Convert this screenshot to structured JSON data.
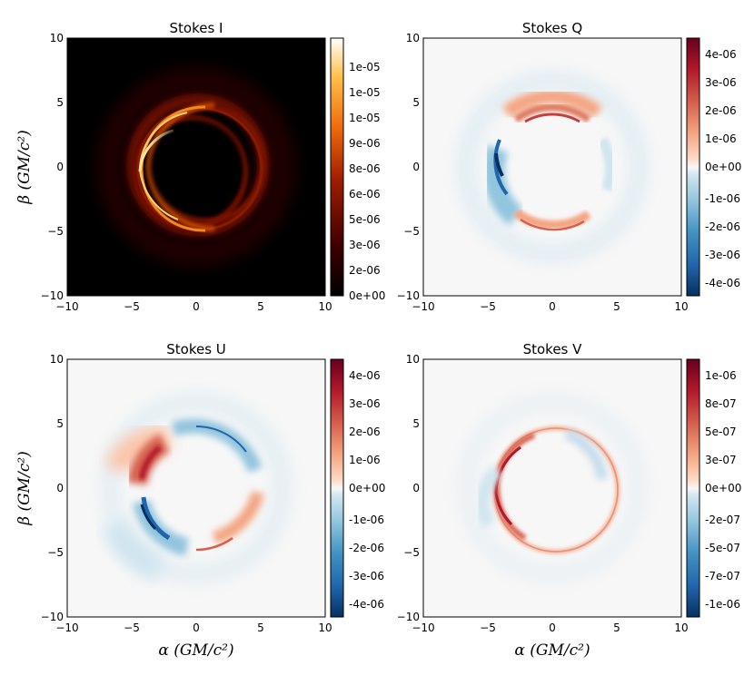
{
  "chart_data": [
    {
      "type": "heatmap",
      "title": "Stokes I",
      "xlabel": "",
      "ylabel": "β (GM/c²)",
      "xlim": [
        -10,
        10
      ],
      "ylim": [
        -10,
        10
      ],
      "x_ticks": [
        "−10",
        "−5",
        "0",
        "5",
        "10"
      ],
      "y_ticks": [
        "−10",
        "−5",
        "0",
        "5",
        "10"
      ],
      "x_tick_values": [
        -10,
        -5,
        0,
        5,
        10
      ],
      "y_tick_values": [
        -10,
        -5,
        0,
        5,
        10
      ],
      "colormap": "afmhot",
      "colorbar": {
        "tick_labels": [
          "0e+00",
          "2e-06",
          "3e-06",
          "5e-06",
          "6e-06",
          "8e-06",
          "9e-06",
          "1e-05",
          "1e-05",
          "1e-05"
        ],
        "vmin": 0,
        "vmax": 1.1e-05
      },
      "feature": {
        "shape": "photon ring",
        "ring_center": [
          0,
          0
        ],
        "inner_shadow_radius": 4,
        "ring_radius": 5,
        "brightest_side": "left",
        "peak_intensity": 1.1e-05
      }
    },
    {
      "type": "heatmap",
      "title": "Stokes Q",
      "xlabel": "",
      "ylabel": "",
      "xlim": [
        -10,
        10
      ],
      "ylim": [
        -10,
        10
      ],
      "x_ticks": [
        "−10",
        "−5",
        "0",
        "5",
        "10"
      ],
      "y_ticks": [
        "−10",
        "−5",
        "0",
        "5",
        "10"
      ],
      "x_tick_values": [
        -10,
        -5,
        0,
        5,
        10
      ],
      "y_tick_values": [
        -10,
        -5,
        0,
        5,
        10
      ],
      "colormap": "RdBu_r",
      "colorbar": {
        "tick_labels": [
          "-4e-06",
          "-3e-06",
          "-2e-06",
          "-1e-06",
          "0e+00",
          "1e-06",
          "2e-06",
          "3e-06",
          "4e-06"
        ],
        "vmin": -4.4e-06,
        "vmax": 4.4e-06
      },
      "feature": {
        "shape": "photon ring",
        "ring_radius": 5,
        "positive_regions": [
          "top",
          "bottom"
        ],
        "negative_regions": [
          "left"
        ]
      }
    },
    {
      "type": "heatmap",
      "title": "Stokes U",
      "xlabel": "α (GM/c²)",
      "ylabel": "β (GM/c²)",
      "xlim": [
        -10,
        10
      ],
      "ylim": [
        -10,
        10
      ],
      "x_ticks": [
        "−10",
        "−5",
        "0",
        "5",
        "10"
      ],
      "y_ticks": [
        "−10",
        "−5",
        "0",
        "5",
        "10"
      ],
      "x_tick_values": [
        -10,
        -5,
        0,
        5,
        10
      ],
      "y_tick_values": [
        -10,
        -5,
        0,
        5,
        10
      ],
      "colormap": "RdBu_r",
      "colorbar": {
        "tick_labels": [
          "-4e-06",
          "-3e-06",
          "-2e-06",
          "-1e-06",
          "0e+00",
          "1e-06",
          "2e-06",
          "3e-06",
          "4e-06"
        ],
        "vmin": -4.4e-06,
        "vmax": 4.4e-06
      },
      "feature": {
        "shape": "photon ring",
        "ring_radius": 5,
        "positive_regions": [
          "upper-left",
          "lower-right"
        ],
        "negative_regions": [
          "lower-left",
          "upper-right"
        ]
      }
    },
    {
      "type": "heatmap",
      "title": "Stokes V",
      "xlabel": "α (GM/c²)",
      "ylabel": "",
      "xlim": [
        -10,
        10
      ],
      "ylim": [
        -10,
        10
      ],
      "x_ticks": [
        "−10",
        "−5",
        "0",
        "5",
        "10"
      ],
      "y_ticks": [
        "−10",
        "−5",
        "0",
        "5",
        "10"
      ],
      "x_tick_values": [
        -10,
        -5,
        0,
        5,
        10
      ],
      "y_tick_values": [
        -10,
        -5,
        0,
        5,
        10
      ],
      "colormap": "RdBu_r",
      "colorbar": {
        "tick_labels": [
          "-1e-06",
          "-7e-07",
          "-5e-07",
          "-2e-07",
          "0e+00",
          "3e-07",
          "5e-07",
          "8e-07",
          "1e-06"
        ],
        "vmin": -1.1e-06,
        "vmax": 1.1e-06
      },
      "feature": {
        "shape": "photon ring",
        "ring_radius": 5,
        "positive_regions": [
          "left",
          "ring"
        ],
        "negative_regions": [
          "upper-interior (faint)"
        ]
      }
    }
  ]
}
